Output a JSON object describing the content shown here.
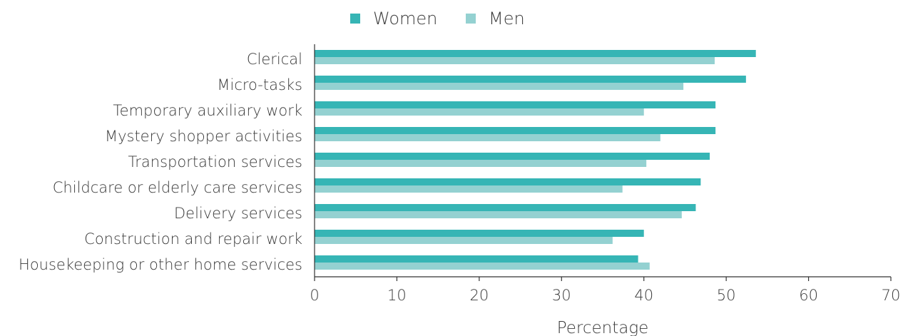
{
  "chart_data": {
    "type": "bar",
    "orientation": "horizontal",
    "categories": [
      "Clerical",
      "Micro-tasks",
      "Temporary auxiliary work",
      "Mystery shopper activities",
      "Transportation services",
      "Childcare or elderly care services",
      "Delivery services",
      "Construction and repair work",
      "Housekeeping or other home services"
    ],
    "series": [
      {
        "name": "Women",
        "color": "#36b5b5",
        "values": [
          53.6,
          52.4,
          48.7,
          48.7,
          48.0,
          46.9,
          46.3,
          40.0,
          39.3
        ]
      },
      {
        "name": "Men",
        "color": "#94d1d1",
        "values": [
          48.6,
          44.8,
          40.0,
          42.0,
          40.3,
          37.4,
          44.6,
          36.2,
          40.7
        ]
      }
    ],
    "xlabel": "Percentage",
    "ylabel": "",
    "xlim": [
      0,
      70
    ],
    "xticks": [
      0,
      10,
      20,
      30,
      40,
      50,
      60,
      70
    ],
    "grid": false,
    "legend_position": "top-center"
  }
}
